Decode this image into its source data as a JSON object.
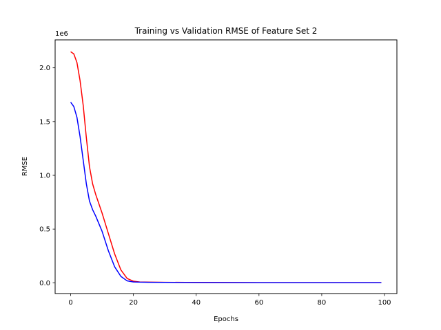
{
  "chart_data": {
    "type": "line",
    "title": "Training vs Validation RMSE of Feature Set 2",
    "xlabel": "Epochs",
    "ylabel": "RMSE",
    "y_offset_text": "1e6",
    "y_scale_factor": 1000000,
    "xlim": [
      -4.95,
      103.95
    ],
    "ylim": [
      -100000,
      2260000
    ],
    "x_ticks": [
      0,
      20,
      40,
      60,
      80,
      100
    ],
    "x_tick_labels": [
      "0",
      "20",
      "40",
      "60",
      "80",
      "100"
    ],
    "y_ticks": [
      0,
      500000,
      1000000,
      1500000,
      2000000
    ],
    "y_tick_labels": [
      "0.0",
      "0.5",
      "1.0",
      "1.5",
      "2.0"
    ],
    "grid": false,
    "legend": false,
    "x": [
      0,
      1,
      2,
      3,
      4,
      5,
      6,
      7,
      8,
      10,
      12,
      14,
      16,
      18,
      20,
      22,
      25,
      30,
      40,
      50,
      60,
      70,
      80,
      90,
      99
    ],
    "series": [
      {
        "color": "#ff0000",
        "values": [
          2150000,
          2130000,
          2050000,
          1880000,
          1650000,
          1350000,
          1080000,
          920000,
          820000,
          650000,
          460000,
          270000,
          120000,
          40000,
          15000,
          8000,
          6000,
          5000,
          3000,
          2000,
          1500,
          1500,
          1500,
          1500,
          1500
        ]
      },
      {
        "color": "#0000ff",
        "values": [
          1680000,
          1640000,
          1540000,
          1360000,
          1140000,
          920000,
          760000,
          680000,
          620000,
          480000,
          300000,
          150000,
          60000,
          18000,
          8000,
          6000,
          5000,
          4000,
          2000,
          1500,
          1000,
          1000,
          1000,
          1000,
          1000
        ]
      }
    ]
  }
}
